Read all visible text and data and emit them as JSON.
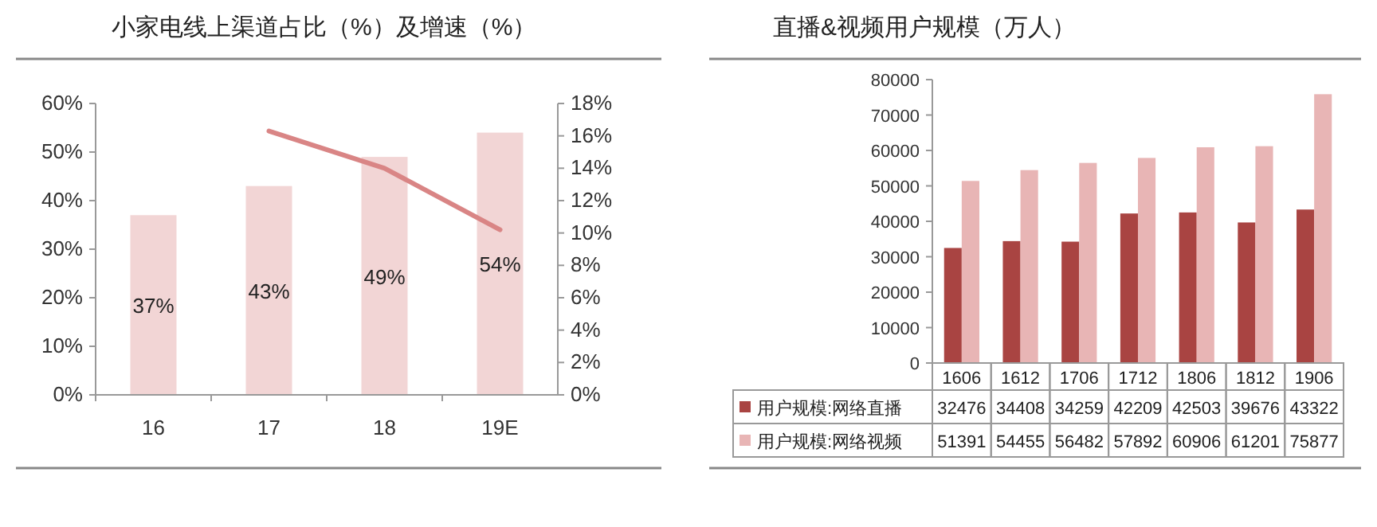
{
  "chart_data": [
    {
      "type": "bar",
      "title": "小家电线上渠道占比（%）及增速（%）",
      "categories": [
        "16",
        "17",
        "18",
        "19E"
      ],
      "series": [
        {
          "color": "#f2d5d5",
          "values": [
            37,
            43,
            49,
            54
          ],
          "value_labels": [
            "37%",
            "43%",
            "49%",
            "54%"
          ]
        },
        {
          "type": "line",
          "axis": "y2",
          "color": "#d98585",
          "values": [
            null,
            16.3,
            14.0,
            10.2
          ]
        }
      ],
      "ylim": [
        0,
        60
      ],
      "yticks": [
        {
          "value": 0,
          "label": "0%"
        },
        {
          "value": 10,
          "label": "10%"
        },
        {
          "value": 20,
          "label": "20%"
        },
        {
          "value": 30,
          "label": "30%"
        },
        {
          "value": 40,
          "label": "40%"
        },
        {
          "value": 50,
          "label": "50%"
        },
        {
          "value": 60,
          "label": "60%"
        }
      ],
      "y2lim": [
        0,
        18
      ],
      "y2ticks": [
        {
          "value": 0,
          "label": "0%"
        },
        {
          "value": 2,
          "label": "2%"
        },
        {
          "value": 4,
          "label": "4%"
        },
        {
          "value": 6,
          "label": "6%"
        },
        {
          "value": 8,
          "label": "8%"
        },
        {
          "value": 10,
          "label": "10%"
        },
        {
          "value": 12,
          "label": "12%"
        },
        {
          "value": 14,
          "label": "14%"
        },
        {
          "value": 16,
          "label": "16%"
        },
        {
          "value": 18,
          "label": "18%"
        }
      ]
    },
    {
      "type": "bar",
      "title": "直播&视频用户规模（万人）",
      "categories": [
        "1606",
        "1612",
        "1706",
        "1712",
        "1806",
        "1812",
        "1906"
      ],
      "series": [
        {
          "name": "用户规模:网络直播",
          "color": "#a94442",
          "values": [
            32476,
            34408,
            34259,
            42209,
            42503,
            39676,
            43322
          ]
        },
        {
          "name": "用户规模:网络视频",
          "color": "#e8b5b5",
          "values": [
            51391,
            54455,
            56482,
            57892,
            60906,
            61201,
            75877
          ]
        }
      ],
      "ylim": [
        0,
        80000
      ],
      "yticks": [
        0,
        10000,
        20000,
        30000,
        40000,
        50000,
        60000,
        70000,
        80000
      ],
      "data_labels": true,
      "legend": "bottom"
    }
  ]
}
